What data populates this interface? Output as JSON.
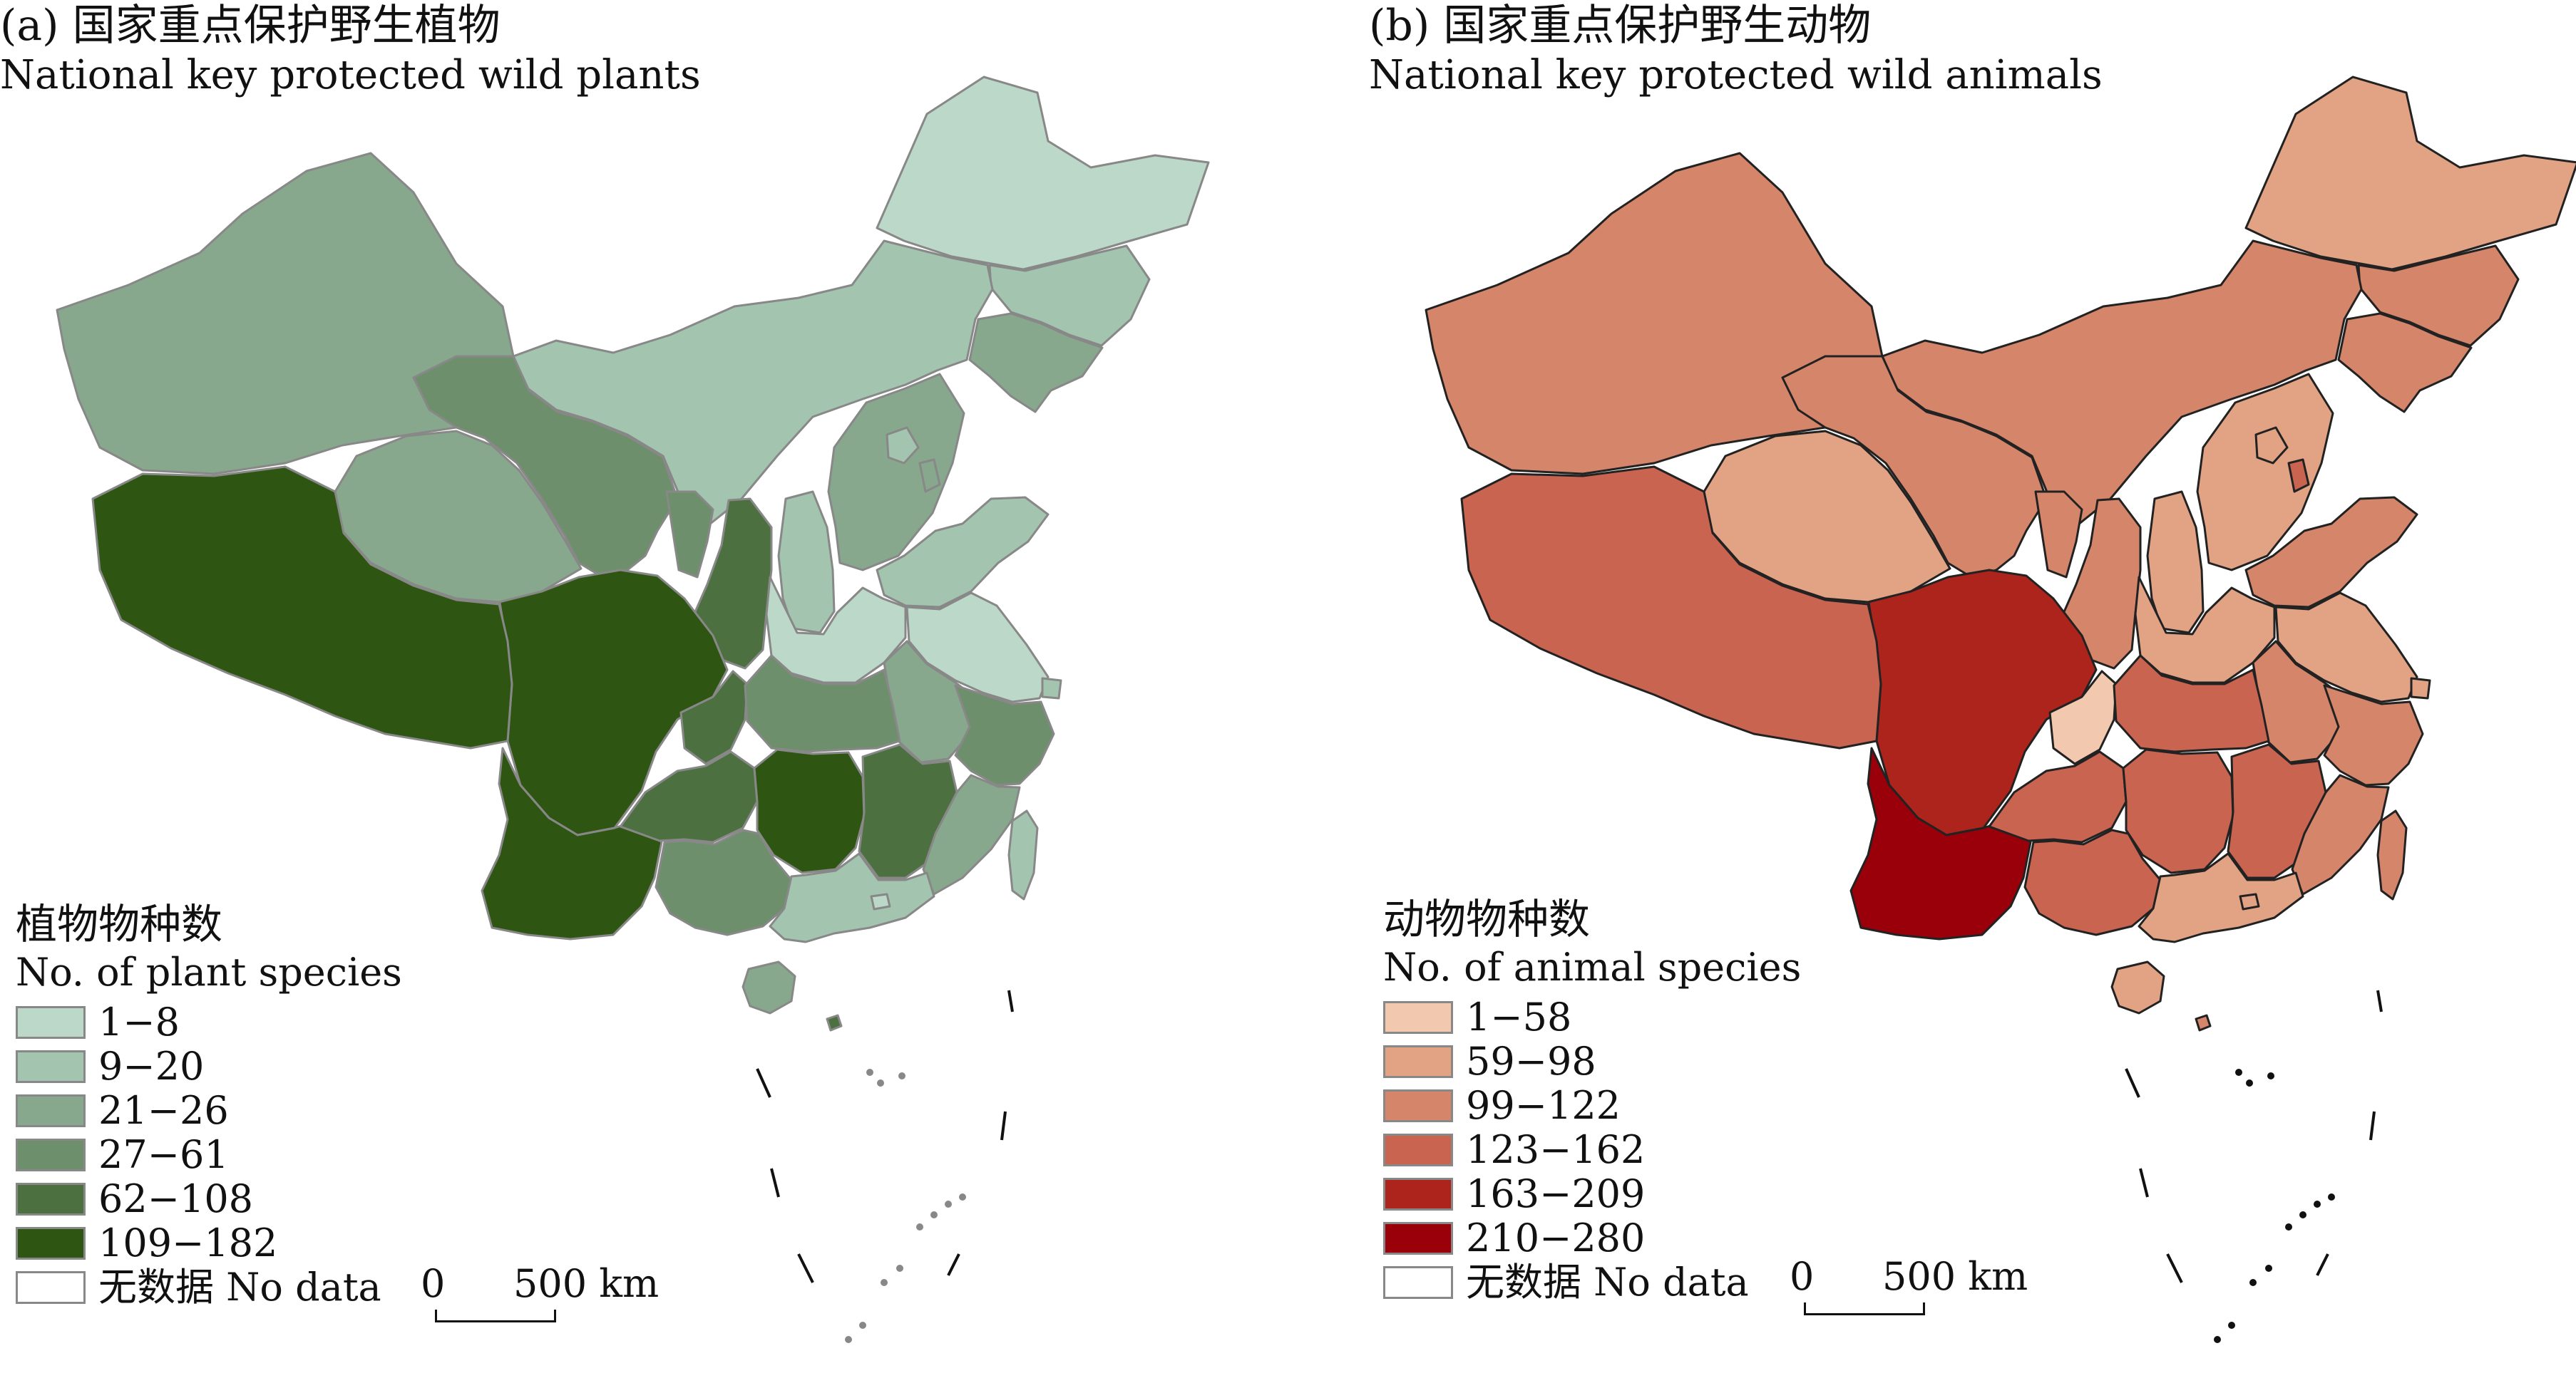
{
  "panels": [
    {
      "id": "a",
      "title_cn": "(a) 国家重点保护野生植物",
      "title_en": "National key protected wild plants",
      "legend": {
        "title_cn": "植物物种数",
        "title_en": "No. of plant species",
        "classes": [
          {
            "label": "1−8",
            "color": "#bcd8c8"
          },
          {
            "label": "9−20",
            "color": "#a3c4ae"
          },
          {
            "label": "21−26",
            "color": "#87a88c"
          },
          {
            "label": "27−61",
            "color": "#6e8f6c"
          },
          {
            "label": "62−108",
            "color": "#4d7040"
          },
          {
            "label": "109−182",
            "color": "#2e5612"
          },
          {
            "label": "无数据 No data",
            "color": "#ffffff"
          }
        ]
      },
      "scale": {
        "zero": "0",
        "distance": "500 km"
      },
      "region_class": [
        0,
        1,
        2,
        1,
        2,
        3,
        3,
        4,
        5,
        5,
        4,
        4,
        1,
        2,
        1,
        2,
        1,
        0,
        0,
        2,
        3,
        5,
        4,
        3,
        2,
        1,
        3,
        1,
        0,
        2,
        1,
        2,
        5,
        4
      ],
      "boundary_color": "#888888"
    },
    {
      "id": "b",
      "title_cn": "(b) 国家重点保护野生动物",
      "title_en": "National key protected wild animals",
      "legend": {
        "title_cn": "动物物种数",
        "title_en": "No. of animal species",
        "classes": [
          {
            "label": "1−58",
            "color": "#f2c8ae"
          },
          {
            "label": "59−98",
            "color": "#e2a384"
          },
          {
            "label": "99−122",
            "color": "#d5856a"
          },
          {
            "label": "123−162",
            "color": "#c86450"
          },
          {
            "label": "163−209",
            "color": "#ad241c"
          },
          {
            "label": "210−280",
            "color": "#99000a"
          },
          {
            "label": "无数据 No data",
            "color": "#ffffff"
          }
        ]
      },
      "scale": {
        "zero": "0",
        "distance": "500 km"
      },
      "region_class": [
        1,
        2,
        2,
        2,
        2,
        2,
        2,
        2,
        4,
        5,
        0,
        3,
        1,
        1,
        1,
        3,
        2,
        1,
        1,
        2,
        3,
        3,
        3,
        2,
        2,
        1,
        3,
        1,
        1,
        1,
        2,
        1,
        3,
        2
      ],
      "boundary_color": "#222222"
    }
  ]
}
